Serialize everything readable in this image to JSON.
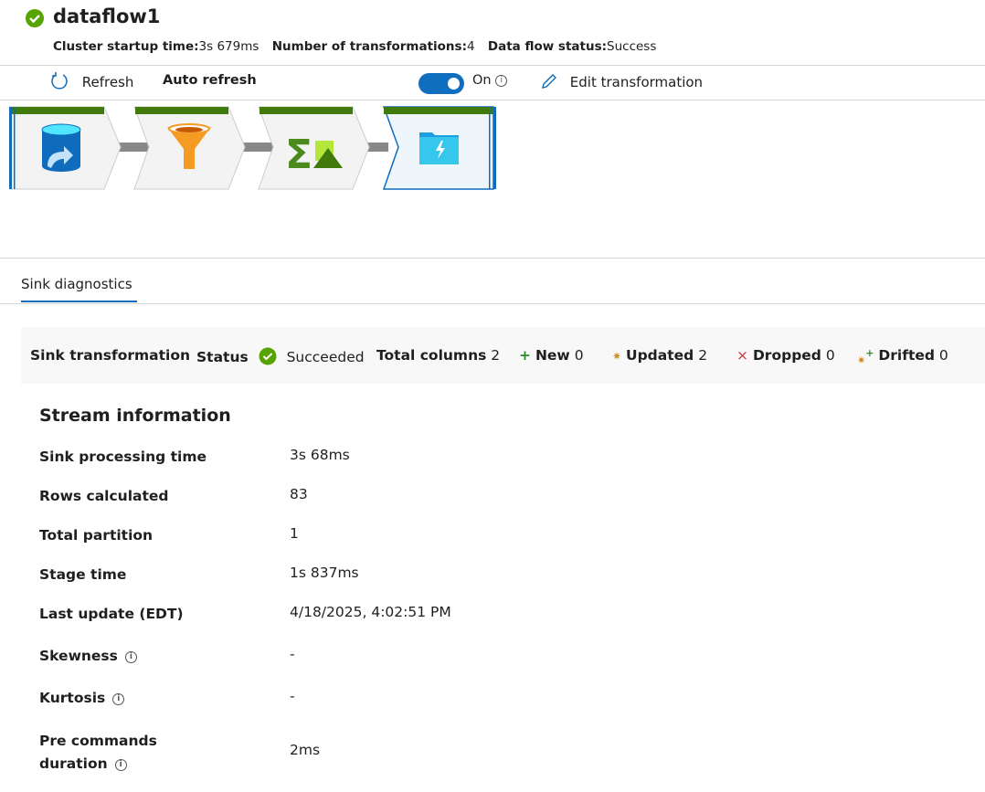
{
  "header": {
    "title": "dataflow1",
    "status_icon": "check-circle-icon",
    "status_color": "#57a300",
    "meta": [
      {
        "label": "Cluster startup time:",
        "value": "3s 679ms"
      },
      {
        "label": "Number of transformations:",
        "value": "4"
      },
      {
        "label": "Data flow status:",
        "value": "Success"
      }
    ]
  },
  "toolbar": {
    "refresh": "Refresh",
    "auto_refresh": "Auto refresh",
    "toggle_state": "On",
    "toggle_on": true,
    "edit": "Edit transformation"
  },
  "pipeline": {
    "nodes": [
      {
        "icon": "source-database-icon"
      },
      {
        "icon": "filter-funnel-icon"
      },
      {
        "icon": "aggregate-icon"
      },
      {
        "icon": "sink-folder-icon",
        "selected": true
      }
    ],
    "status_color": "#3f7a0b",
    "accent": "#0f6cbd"
  },
  "tabs": [
    {
      "label": "Sink diagnostics",
      "active": true
    }
  ],
  "summary": {
    "sink_transformation": "Sink transformation",
    "status_label": "Status",
    "status_value": "Succeeded",
    "total_columns_label": "Total columns",
    "total_columns": "2",
    "new_label": "New",
    "new": "0",
    "updated_label": "Updated",
    "updated": "2",
    "dropped_label": "Dropped",
    "dropped": "0",
    "drifted_label": "Drifted",
    "drifted": "0"
  },
  "stream": {
    "heading": "Stream information",
    "rows": [
      {
        "label": "Sink processing time",
        "value": "3s 68ms"
      },
      {
        "label": "Rows calculated",
        "value": "83"
      },
      {
        "label": "Total partition",
        "value": "1"
      },
      {
        "label": "Stage time",
        "value": "1s 837ms"
      },
      {
        "label": "Last update (EDT)",
        "value": "4/18/2025, 4:02:51 PM"
      },
      {
        "label": "Skewness",
        "value": "-"
      },
      {
        "label": "Kurtosis",
        "value": "-"
      },
      {
        "label": "Pre commands duration",
        "value": "2ms"
      }
    ]
  }
}
